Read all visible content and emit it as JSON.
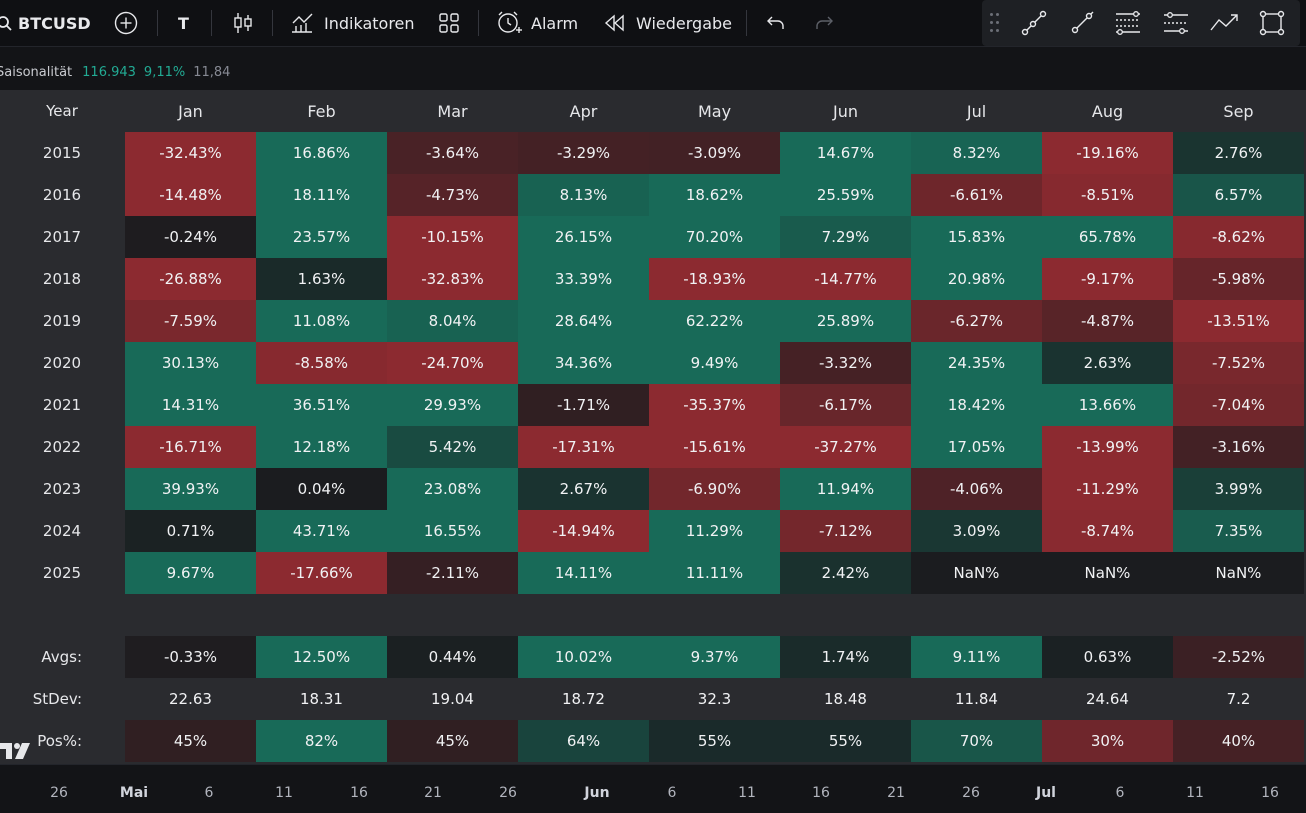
{
  "toolbar": {
    "symbol": "BTCUSD",
    "add_symbol_icon": "plus-circle-icon",
    "interval_label": "T",
    "chart_type_icon": "candles-icon",
    "indicators_label": "Indikatoren",
    "templates_icon": "grid-icon",
    "alert_label": "Alarm",
    "replay_label": "Wiedergabe",
    "undo_icon": "undo-icon",
    "redo_icon": "redo-icon",
    "drawing_tools": [
      "trend-line-icon",
      "ray-icon",
      "fib-retracement-icon",
      "parallel-channel-icon",
      "path-icon",
      "rectangle-icon"
    ]
  },
  "legend": {
    "name": "Saisonalität",
    "value1": "116.943",
    "value2": "9,11%",
    "value3": "11,84"
  },
  "table": {
    "year_header": "Year",
    "months": [
      "Jan",
      "Feb",
      "Mar",
      "Apr",
      "May",
      "Jun",
      "Jul",
      "Aug",
      "Sep"
    ],
    "rows": [
      {
        "year": "2015",
        "values": [
          "-32.43%",
          "16.86%",
          "-3.64%",
          "-3.29%",
          "-3.09%",
          "14.67%",
          "8.32%",
          "-19.16%",
          "2.76%"
        ]
      },
      {
        "year": "2016",
        "values": [
          "-14.48%",
          "18.11%",
          "-4.73%",
          "8.13%",
          "18.62%",
          "25.59%",
          "-6.61%",
          "-8.51%",
          "6.57%"
        ]
      },
      {
        "year": "2017",
        "values": [
          "-0.24%",
          "23.57%",
          "-10.15%",
          "26.15%",
          "70.20%",
          "7.29%",
          "15.83%",
          "65.78%",
          "-8.62%"
        ]
      },
      {
        "year": "2018",
        "values": [
          "-26.88%",
          "1.63%",
          "-32.83%",
          "33.39%",
          "-18.93%",
          "-14.77%",
          "20.98%",
          "-9.17%",
          "-5.98%"
        ]
      },
      {
        "year": "2019",
        "values": [
          "-7.59%",
          "11.08%",
          "8.04%",
          "28.64%",
          "62.22%",
          "25.89%",
          "-6.27%",
          "-4.87%",
          "-13.51%"
        ]
      },
      {
        "year": "2020",
        "values": [
          "30.13%",
          "-8.58%",
          "-24.70%",
          "34.36%",
          "9.49%",
          "-3.32%",
          "24.35%",
          "2.63%",
          "-7.52%"
        ]
      },
      {
        "year": "2021",
        "values": [
          "14.31%",
          "36.51%",
          "29.93%",
          "-1.71%",
          "-35.37%",
          "-6.17%",
          "18.42%",
          "13.66%",
          "-7.04%"
        ]
      },
      {
        "year": "2022",
        "values": [
          "-16.71%",
          "12.18%",
          "5.42%",
          "-17.31%",
          "-15.61%",
          "-37.27%",
          "17.05%",
          "-13.99%",
          "-3.16%"
        ]
      },
      {
        "year": "2023",
        "values": [
          "39.93%",
          "0.04%",
          "23.08%",
          "2.67%",
          "-6.90%",
          "11.94%",
          "-4.06%",
          "-11.29%",
          "3.99%"
        ]
      },
      {
        "year": "2024",
        "values": [
          "0.71%",
          "43.71%",
          "16.55%",
          "-14.94%",
          "11.29%",
          "-7.12%",
          "3.09%",
          "-8.74%",
          "7.35%"
        ]
      },
      {
        "year": "2025",
        "values": [
          "9.67%",
          "-17.66%",
          "-2.11%",
          "14.11%",
          "11.11%",
          "2.42%",
          "NaN%",
          "NaN%",
          "NaN%"
        ]
      }
    ],
    "avgs": {
      "label": "Avgs:",
      "values": [
        "-0.33%",
        "12.50%",
        "0.44%",
        "10.02%",
        "9.37%",
        "1.74%",
        "9.11%",
        "0.63%",
        "-2.52%"
      ]
    },
    "stdev": {
      "label": "StDev:",
      "values": [
        "22.63",
        "18.31",
        "19.04",
        "18.72",
        "32.3",
        "18.48",
        "11.84",
        "24.64",
        "7.2"
      ]
    },
    "pos": {
      "label": "Pos%:",
      "values": [
        "45%",
        "82%",
        "45%",
        "64%",
        "55%",
        "55%",
        "70%",
        "30%",
        "40%"
      ]
    }
  },
  "axis": {
    "ticks": [
      {
        "label": "26",
        "bold": false
      },
      {
        "label": "Mai",
        "bold": true
      },
      {
        "label": "6",
        "bold": false
      },
      {
        "label": "11",
        "bold": false
      },
      {
        "label": "16",
        "bold": false
      },
      {
        "label": "21",
        "bold": false
      },
      {
        "label": "26",
        "bold": false
      },
      {
        "label": "Jun",
        "bold": true
      },
      {
        "label": "6",
        "bold": false
      },
      {
        "label": "11",
        "bold": false
      },
      {
        "label": "16",
        "bold": false
      },
      {
        "label": "21",
        "bold": false
      },
      {
        "label": "26",
        "bold": false
      },
      {
        "label": "Jul",
        "bold": true
      },
      {
        "label": "6",
        "bold": false
      },
      {
        "label": "11",
        "bold": false
      },
      {
        "label": "16",
        "bold": false
      }
    ]
  },
  "colors": {
    "positive": "#1a6b58",
    "negative": "#8c2a30",
    "neutral": "#1b1c1f"
  }
}
